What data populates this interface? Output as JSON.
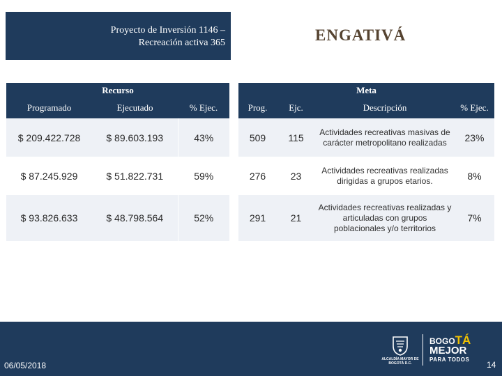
{
  "header": {
    "project_line1": "Proyecto de Inversión 1146 –",
    "project_line2": "Recreación activa 365",
    "place": "ENGATIVÁ"
  },
  "recurso": {
    "title": "Recurso",
    "columns": [
      "Programado",
      "Ejecutado",
      "% Ejec."
    ],
    "rows": [
      [
        "$ 209.422.728",
        "$ 89.603.193",
        "43%"
      ],
      [
        "$ 87.245.929",
        "$ 51.822.731",
        "59%"
      ],
      [
        "$ 93.826.633",
        "$ 48.798.564",
        "52%"
      ]
    ]
  },
  "meta": {
    "title": "Meta",
    "columns": [
      "Prog.",
      "Ejc.",
      "Descripción",
      "% Ejec."
    ],
    "rows": [
      [
        "509",
        "115",
        "Actividades recreativas masivas de carácter metropolitano realizadas",
        "23%"
      ],
      [
        "276",
        "23",
        "Actividades recreativas realizadas dirigidas a grupos etarios.",
        "8%"
      ],
      [
        "291",
        "21",
        "Actividades recreativas realizadas y articuladas con grupos poblacionales y/o territorios",
        "7%"
      ]
    ]
  },
  "footer": {
    "date": "06/05/2018",
    "page": "14",
    "seal_text": "ALCALDÍA MAYOR DE BOGOTÁ D.C.",
    "logo_line1_a": "BOGO",
    "logo_line1_b": "TÁ",
    "logo_line2": "MEJOR",
    "logo_line3": "PARA TODOS"
  },
  "colors": {
    "navy": "#1f3b5c",
    "row_alt": "#eef1f6",
    "place_text": "#554330",
    "logo_accent": "#f2c200"
  }
}
